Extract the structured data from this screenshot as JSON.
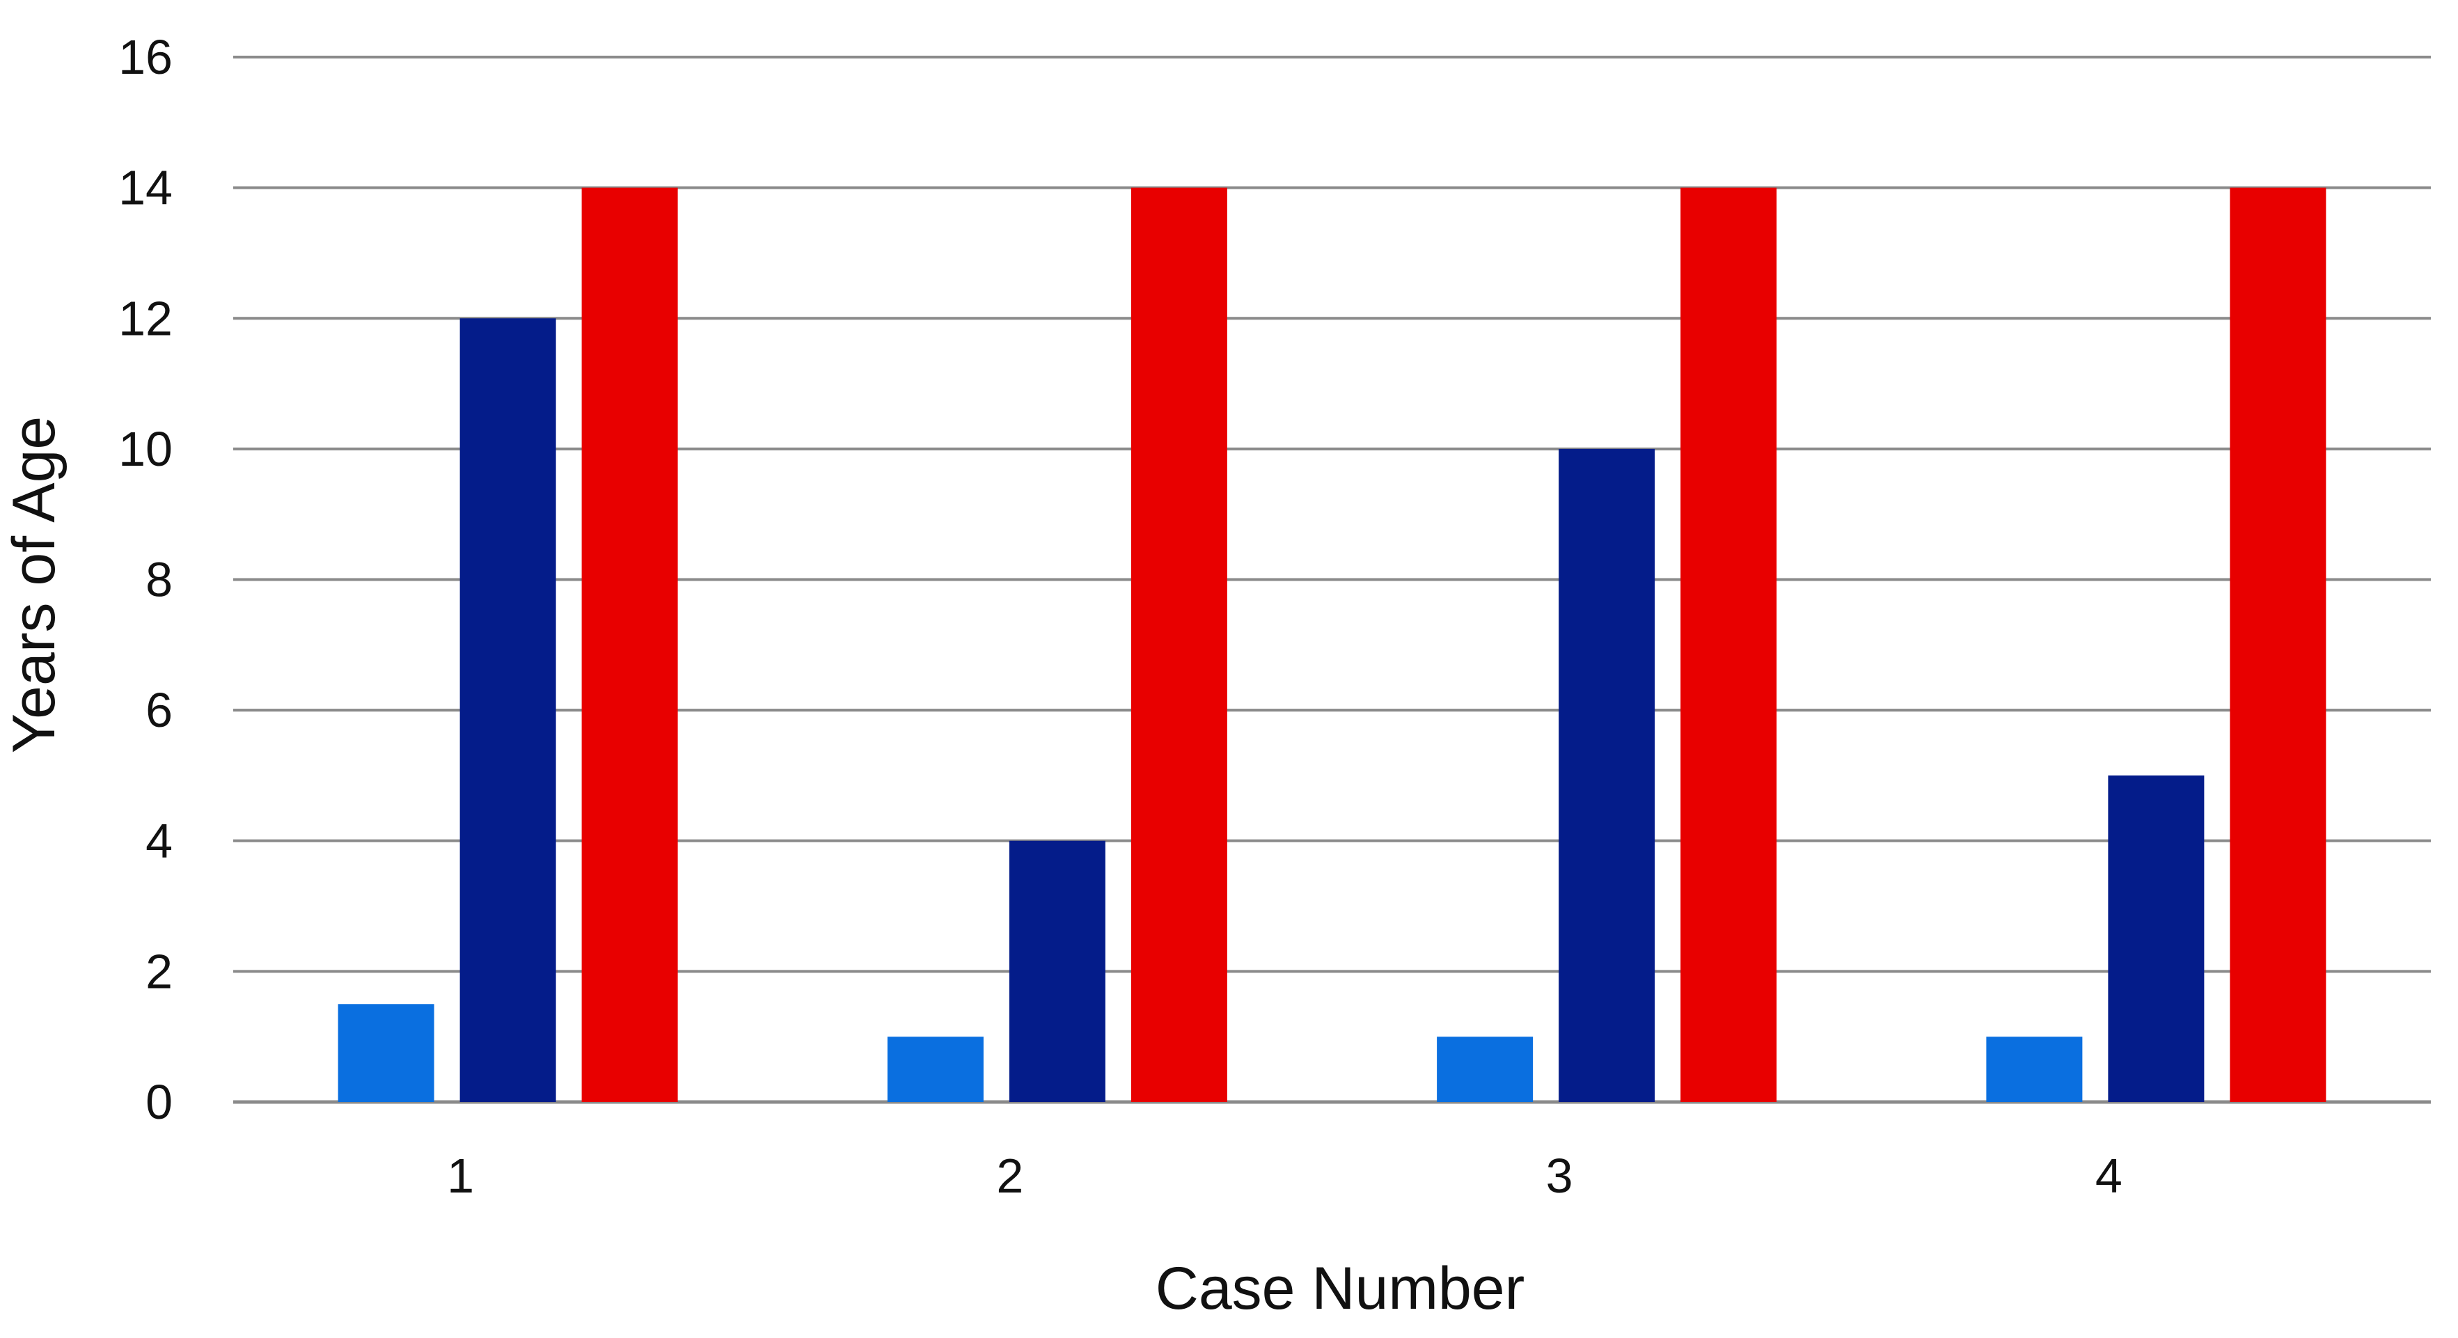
{
  "chart_data": {
    "type": "bar",
    "title": "",
    "xlabel": "Case Number",
    "ylabel": "Years of Age",
    "categories": [
      "1",
      "2",
      "3",
      "4"
    ],
    "series": [
      {
        "color": "#0a6fe0",
        "values": [
          1.5,
          1,
          1,
          1
        ]
      },
      {
        "color": "#041c8a",
        "values": [
          12,
          4,
          10,
          5
        ]
      },
      {
        "color": "#e80000",
        "values": [
          14,
          14,
          14,
          14
        ]
      }
    ],
    "ylim": [
      0,
      16
    ],
    "yticks": [
      0,
      2,
      4,
      6,
      8,
      10,
      12,
      14,
      16
    ],
    "grid": true,
    "legend": "none"
  }
}
